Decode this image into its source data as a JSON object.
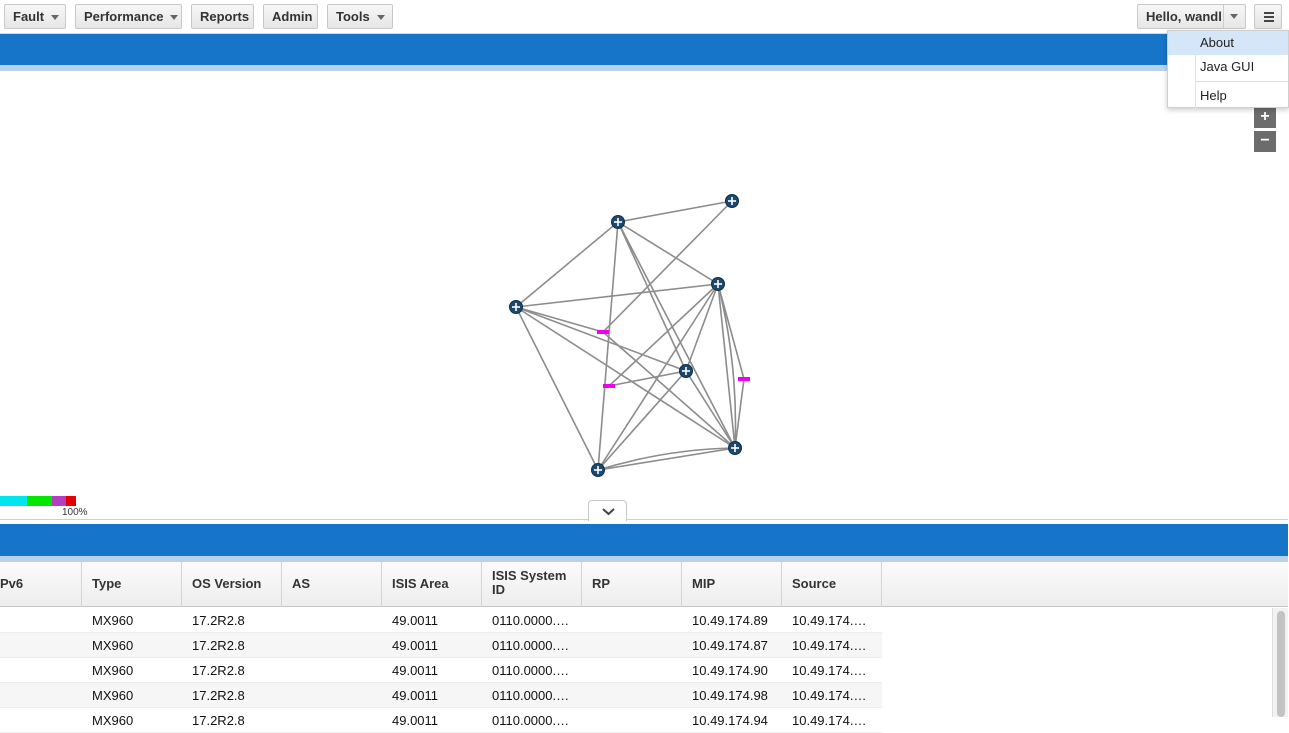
{
  "toolbar": {
    "menus": [
      {
        "label": "Fault",
        "has_caret": true
      },
      {
        "label": "Performance",
        "has_caret": true
      },
      {
        "label": "Reports",
        "has_caret": false
      },
      {
        "label": "Admin",
        "has_caret": false
      },
      {
        "label": "Tools",
        "has_caret": true
      }
    ],
    "user_label": "Hello, wandl",
    "menu_icon": "hamburger-icon"
  },
  "settings_menu": {
    "items": [
      {
        "label": "About",
        "active": true
      },
      {
        "label": "Java GUI",
        "active": false
      },
      {
        "label": "Help",
        "active": false
      }
    ]
  },
  "map": {
    "zoom_in_label": "+",
    "zoom_out_label": "−",
    "legend_max_label": "100%",
    "legend_colors": [
      "#00e5ee",
      "#00e600",
      "#b23fc1",
      "#e60000"
    ],
    "node_icon": "router-icon",
    "link_color": "#8c8c8c",
    "marker_color": "#ee00ee",
    "collapse_icon": "chevron-down-icon"
  },
  "grid": {
    "columns": [
      "Pv6",
      "Type",
      "OS Version",
      "AS",
      "ISIS Area",
      "ISIS System ID",
      "RP",
      "MIP",
      "Source"
    ],
    "rows": [
      {
        "pv6": "",
        "type": "MX960",
        "os": "17.2R2.8",
        "as": "",
        "isis_area": "49.0011",
        "isis_sysid": "0110.0000.…",
        "rp": "",
        "mip": "10.49.174.89",
        "source": "10.49.174.…"
      },
      {
        "pv6": "",
        "type": "MX960",
        "os": "17.2R2.8",
        "as": "",
        "isis_area": "49.0011",
        "isis_sysid": "0110.0000.…",
        "rp": "",
        "mip": "10.49.174.87",
        "source": "10.49.174.…"
      },
      {
        "pv6": "",
        "type": "MX960",
        "os": "17.2R2.8",
        "as": "",
        "isis_area": "49.0011",
        "isis_sysid": "0110.0000.…",
        "rp": "",
        "mip": "10.49.174.90",
        "source": "10.49.174.…"
      },
      {
        "pv6": "",
        "type": "MX960",
        "os": "17.2R2.8",
        "as": "",
        "isis_area": "49.0011",
        "isis_sysid": "0110.0000.…",
        "rp": "",
        "mip": "10.49.174.98",
        "source": "10.49.174.…"
      },
      {
        "pv6": "",
        "type": "MX960",
        "os": "17.2R2.8",
        "as": "",
        "isis_area": "49.0011",
        "isis_sysid": "0110.0000.…",
        "rp": "",
        "mip": "10.49.174.94",
        "source": "10.49.174.…"
      }
    ]
  }
}
